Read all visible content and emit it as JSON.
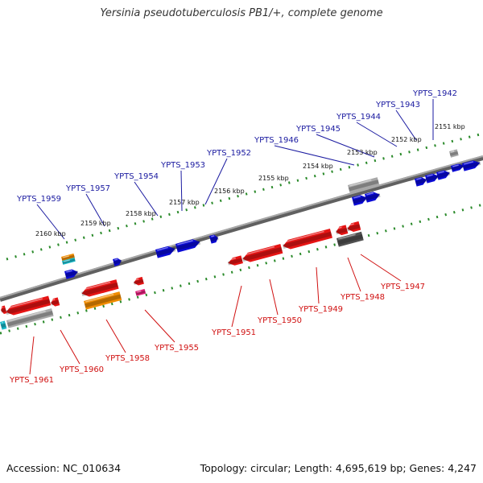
{
  "title": "Yersinia pseudotuberculosis PB1/+, complete genome",
  "footer": {
    "accession": "Accession: NC_010634",
    "summary": "Topology: circular; Length: 4,695,619 bp; Genes: 4,247"
  },
  "colors": {
    "forward_gene": "#0a0ad6",
    "reverse_gene": "#e61414",
    "forward_label": "#1a1aa0",
    "reverse_label": "#d01010",
    "backbone": "#808080",
    "tick": "#2a8a2a",
    "orange": "#f08c00",
    "cyan": "#1ab8c8",
    "magenta": "#e0207a",
    "gray_feature": "#a8a8a8",
    "dark_feature": "#505050"
  },
  "ticks": [
    "2151 kbp",
    "2152 kbp",
    "2153 kbp",
    "2154 kbp",
    "2155 kbp",
    "2156 kbp",
    "2157 kbp",
    "2158 kbp",
    "2159 kbp",
    "2160 kbp"
  ],
  "forward_labels": [
    "YPTS_1942",
    "YPTS_1943",
    "YPTS_1944",
    "YPTS_1945",
    "YPTS_1946",
    "YPTS_1952",
    "YPTS_1953",
    "YPTS_1954",
    "YPTS_1957",
    "YPTS_1959"
  ],
  "reverse_labels": [
    "YPTS_1947",
    "YPTS_1948",
    "YPTS_1949",
    "YPTS_1950",
    "YPTS_1951",
    "YPTS_1955",
    "YPTS_1958",
    "YPTS_1960",
    "YPTS_1961"
  ]
}
